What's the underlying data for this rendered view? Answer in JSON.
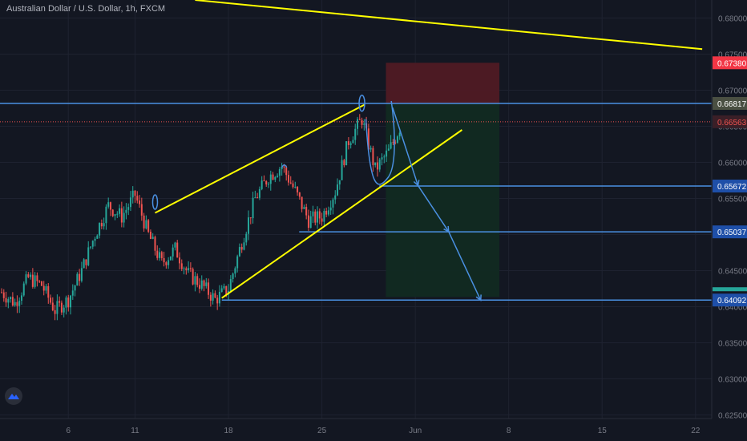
{
  "header": {
    "symbol_title": "Australian Dollar / U.S. Dollar, 1h, FXCM"
  },
  "colors": {
    "background": "#131722",
    "candle_up": "#26a69a",
    "candle_down": "#ef5350",
    "drawing_yellow": "#ffff00",
    "drawing_blue": "#4a90e2",
    "stop_zone": "#4f1a24",
    "target_zone": "#112a22",
    "current_price_line": "#ef5350"
  },
  "chart_data": {
    "type": "candlestick",
    "title": "Australian Dollar / U.S. Dollar, 1h, FXCM",
    "ylim": [
      0.6245,
      0.6825
    ],
    "y_ticks": [
      "0.68000",
      "0.67500",
      "0.67000",
      "0.66500",
      "0.66000",
      "0.65500",
      "0.65000",
      "0.64500",
      "0.64000",
      "0.63500",
      "0.63000",
      "0.62500"
    ],
    "x_ticks": [
      "6",
      "11",
      "18",
      "25",
      "Jun",
      "8",
      "15",
      "22"
    ],
    "close_path": [
      {
        "day": 1,
        "price": 0.642
      },
      {
        "day": 2,
        "price": 0.6405
      },
      {
        "day": 3,
        "price": 0.644
      },
      {
        "day": 4,
        "price": 0.643
      },
      {
        "day": 5,
        "price": 0.6395
      },
      {
        "day": 6,
        "price": 0.641
      },
      {
        "day": 7,
        "price": 0.645
      },
      {
        "day": 8,
        "price": 0.65
      },
      {
        "day": 9,
        "price": 0.654
      },
      {
        "day": 10,
        "price": 0.6525
      },
      {
        "day": 11,
        "price": 0.6555
      },
      {
        "day": 12,
        "price": 0.65
      },
      {
        "day": 13,
        "price": 0.646
      },
      {
        "day": 14,
        "price": 0.648
      },
      {
        "day": 15,
        "price": 0.6445
      },
      {
        "day": 16,
        "price": 0.643
      },
      {
        "day": 17,
        "price": 0.641
      },
      {
        "day": 18,
        "price": 0.6425
      },
      {
        "day": 19,
        "price": 0.649
      },
      {
        "day": 20,
        "price": 0.655
      },
      {
        "day": 21,
        "price": 0.658
      },
      {
        "day": 22,
        "price": 0.6595
      },
      {
        "day": 23,
        "price": 0.656
      },
      {
        "day": 24,
        "price": 0.652
      },
      {
        "day": 25,
        "price": 0.6525
      },
      {
        "day": 26,
        "price": 0.656
      },
      {
        "day": 27,
        "price": 0.663
      },
      {
        "day": 28,
        "price": 0.666
      },
      {
        "day": 29,
        "price": 0.659
      },
      {
        "day": 30,
        "price": 0.6615
      },
      {
        "day": 31,
        "price": 0.6655
      }
    ],
    "horizontal_levels": [
      {
        "price": 0.66817,
        "label": "0.66817",
        "kind": "resistance"
      },
      {
        "price": 0.65672,
        "label": "0.65672",
        "kind": "target"
      },
      {
        "price": 0.65037,
        "label": "0.65037",
        "kind": "target"
      },
      {
        "price": 0.64092,
        "label": "0.64092",
        "kind": "target"
      }
    ],
    "price_labels": [
      {
        "price": 0.6738,
        "label": "0.67380",
        "kind": "stop"
      },
      {
        "price": 0.66563,
        "label": "0.66563",
        "kind": "current"
      }
    ],
    "position": {
      "from_day": 29.8,
      "to_day": 38.3,
      "entry": 0.66817,
      "stop": 0.6738,
      "target": 0.64135
    },
    "trend_lines": [
      {
        "from": {
          "day": 12.5,
          "price": 0.653
        },
        "to": {
          "day": 28.2,
          "price": 0.668
        }
      },
      {
        "from": {
          "day": 17.5,
          "price": 0.6412
        },
        "to": {
          "day": 35.5,
          "price": 0.6645
        }
      },
      {
        "from": {
          "day": 15.5,
          "price": 0.6825
        },
        "to": {
          "day": 53.5,
          "price": 0.6757
        }
      }
    ],
    "projection_arrows": [
      {
        "from": {
          "day": 30.3,
          "price": 0.6676
        },
        "to": {
          "day": 32.2,
          "price": 0.6568
        }
      },
      {
        "from": {
          "day": 32.2,
          "price": 0.6568
        },
        "to": {
          "day": 34.5,
          "price": 0.6504
        }
      },
      {
        "from": {
          "day": 34.5,
          "price": 0.6504
        },
        "to": {
          "day": 36.9,
          "price": 0.6409
        }
      }
    ]
  }
}
